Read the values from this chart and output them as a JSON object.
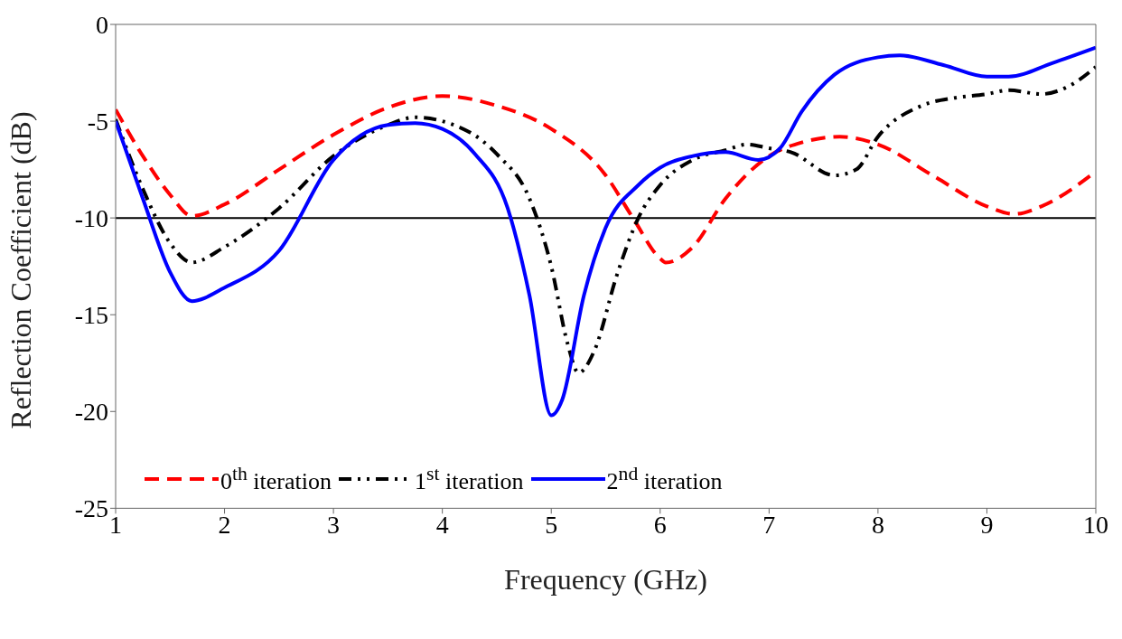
{
  "chart_data": {
    "type": "line",
    "xlabel": "Frequency (GHz)",
    "ylabel": "Reflection Coefficient (dB)",
    "xlim": [
      1,
      10
    ],
    "xticks": [
      1,
      2,
      3,
      4,
      5,
      6,
      7,
      8,
      9,
      10
    ],
    "ylim": [
      -25,
      0
    ],
    "yticks": [
      -25,
      -20,
      -15,
      -10,
      -5,
      0
    ],
    "grid": false,
    "legend": "bottom left",
    "marker": "none",
    "ref_lines": [
      {
        "axis": "y",
        "value": -10,
        "color": "#000000",
        "line_style": "solid"
      }
    ],
    "series": [
      {
        "name": "0$^{th}$ iteration",
        "color": "#ff0000",
        "line_style": "dashed",
        "x": [
          1,
          1.25,
          1.5,
          1.7,
          2,
          2.5,
          3,
          3.5,
          4,
          4.5,
          5,
          5.5,
          5.75,
          6,
          6.05,
          6.3,
          6.6,
          7,
          7.3,
          7.65,
          8,
          8.5,
          9,
          9.25,
          9.5,
          10
        ],
        "values": [
          -4.4,
          -6.8,
          -8.8,
          -9.9,
          -9.3,
          -7.5,
          -5.7,
          -4.3,
          -3.7,
          -4.2,
          -5.4,
          -7.8,
          -10,
          -12.1,
          -12.3,
          -11.5,
          -9,
          -6.8,
          -6.1,
          -5.8,
          -6.2,
          -7.8,
          -9.4,
          -9.8,
          -9.4,
          -7.6
        ]
      },
      {
        "name": "1$^{st}$ iteration",
        "color": "#000000",
        "line_style": "dashdot",
        "x": [
          1,
          1.25,
          1.5,
          1.7,
          2,
          2.5,
          3,
          3.5,
          3.75,
          4,
          4.5,
          4.8,
          5,
          5.15,
          5.25,
          5.4,
          5.6,
          5.8,
          6,
          6.3,
          6.6,
          6.8,
          7,
          7.2,
          7.6,
          7.8,
          8,
          8.4,
          8.7,
          9,
          9.2,
          9.5,
          9.75,
          10
        ],
        "values": [
          -4.9,
          -8.5,
          -11.3,
          -12.3,
          -11.5,
          -9.5,
          -6.8,
          -5.2,
          -4.8,
          -5,
          -6.7,
          -9,
          -12.5,
          -16.5,
          -18,
          -16.8,
          -13,
          -10,
          -8.3,
          -7,
          -6.5,
          -6.2,
          -6.4,
          -6.6,
          -7.8,
          -7.5,
          -5.8,
          -4.2,
          -3.8,
          -3.6,
          -3.4,
          -3.6,
          -3.2,
          -2.2
        ]
      },
      {
        "name": "2$^{nd}$ iteration",
        "color": "#0000ff",
        "line_style": "solid",
        "x": [
          1,
          1.25,
          1.5,
          1.7,
          2,
          2.5,
          3,
          3.5,
          3.75,
          4,
          4.3,
          4.6,
          4.8,
          5,
          5.1,
          5.3,
          5.5,
          5.8,
          6,
          6.3,
          6.6,
          6.9,
          7.1,
          7.3,
          7.6,
          8,
          8.2,
          8.6,
          9,
          9.2,
          9.6,
          10
        ],
        "values": [
          -5,
          -9,
          -12.8,
          -14.3,
          -13.6,
          -11.7,
          -7,
          -5.2,
          -5.1,
          -5.4,
          -6.7,
          -9.5,
          -14,
          -20.2,
          -19.4,
          -14,
          -10.5,
          -8.3,
          -7.4,
          -6.8,
          -6.6,
          -7,
          -6.4,
          -4.5,
          -2.6,
          -1.7,
          -1.6,
          -2.1,
          -2.7,
          -2.7,
          -2,
          -1.2
        ]
      }
    ]
  }
}
